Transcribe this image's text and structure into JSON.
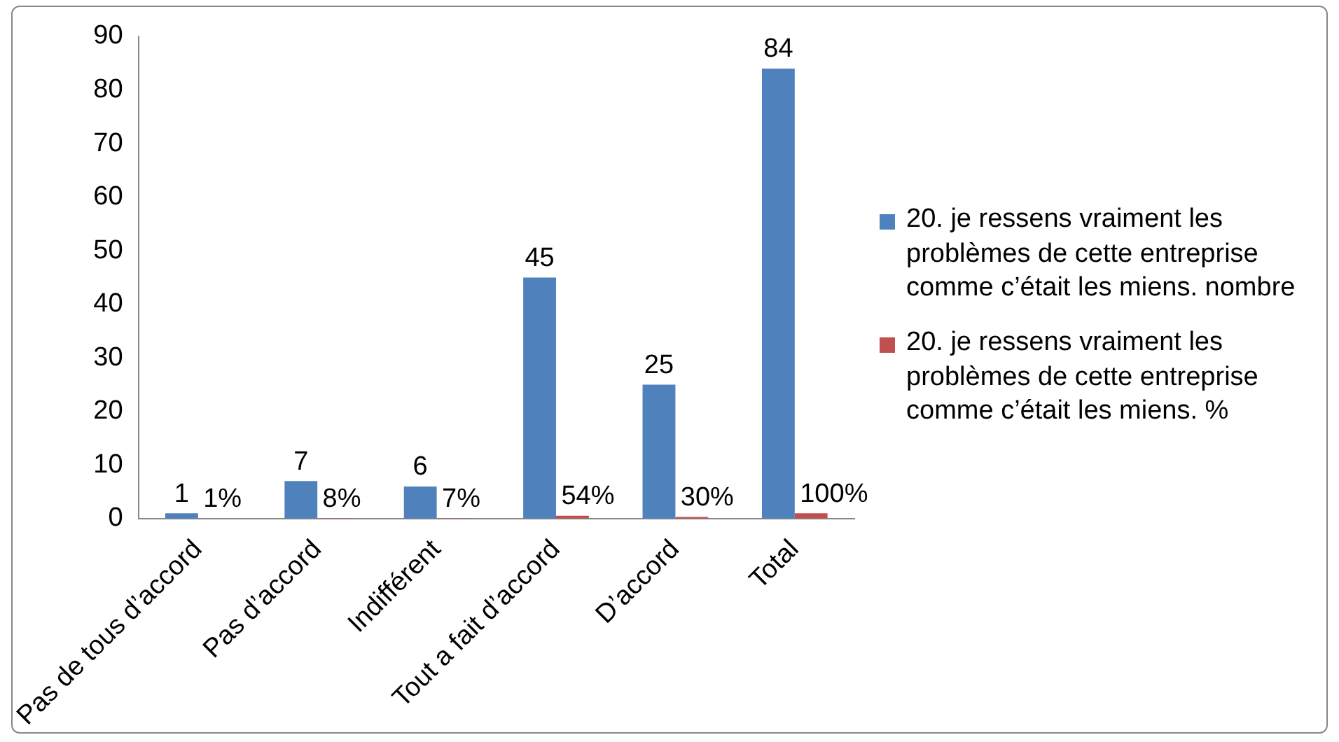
{
  "chart_data": {
    "type": "bar",
    "categories": [
      "Pas de tous d’accord",
      "Pas d’accord",
      "Indifférent",
      "Tout a fait d’accord",
      "D’accord",
      "Total"
    ],
    "series": [
      {
        "name": "20. je ressens vraiment les problèmes de cette entreprise comme c’était les miens. nombre",
        "color": "#4f81bd",
        "values": [
          1,
          7,
          6,
          45,
          25,
          84
        ],
        "value_labels": [
          "1",
          "7",
          "6",
          "45",
          "25",
          "84"
        ]
      },
      {
        "name": "20. je ressens vraiment les problèmes de cette entreprise comme c’était les miens. %",
        "color": "#c0504d",
        "values": [
          0.01,
          0.08,
          0.07,
          0.54,
          0.3,
          1
        ],
        "value_labels": [
          "1%",
          "8%",
          "7%",
          "54%",
          "30%",
          "100%"
        ]
      }
    ],
    "ylim": [
      0,
      90
    ],
    "yticks": [
      0,
      10,
      20,
      30,
      40,
      50,
      60,
      70,
      80,
      90
    ],
    "grid": false,
    "legend": "right"
  }
}
